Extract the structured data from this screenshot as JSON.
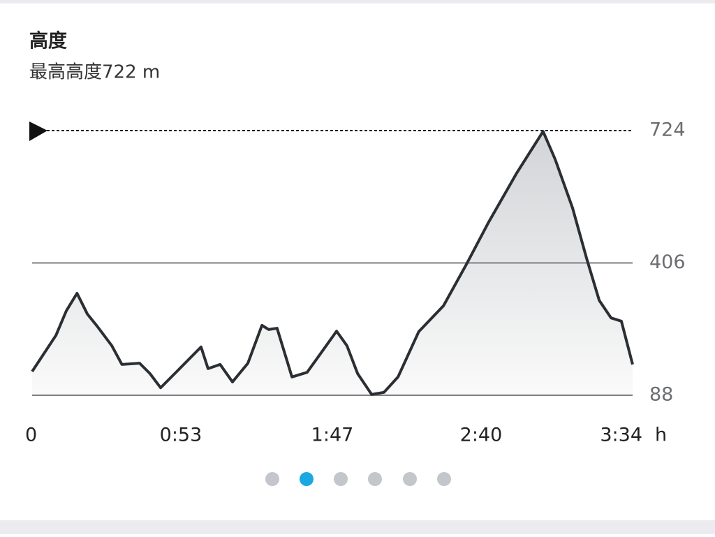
{
  "chart_data": {
    "type": "area",
    "title": "高度",
    "subtitle": "最高高度722 m",
    "x": [
      0,
      8.5,
      12.2,
      16,
      19.7,
      23.4,
      28.4,
      32,
      38.3,
      42,
      45.8,
      52,
      60.2,
      62.7,
      67,
      71.4,
      76.9,
      81.9,
      84.3,
      87.3,
      92.6,
      98,
      103,
      108.5,
      112.2,
      116,
      121,
      125.4,
      130.4,
      137.8,
      146.6,
      154.8,
      162.7,
      172.7,
      182.1,
      186.4,
      192.6,
      197.6,
      202.1,
      206.3,
      210,
      214
    ],
    "values": [
      145,
      232,
      291,
      333,
      283,
      252,
      207,
      162,
      165,
      140,
      106,
      148,
      204,
      152,
      162,
      120,
      165,
      256,
      246,
      249,
      132,
      143,
      190,
      242,
      207,
      140,
      90,
      95,
      132,
      241,
      303,
      403,
      504,
      622,
      722,
      655,
      538,
      417,
      316,
      274,
      266,
      162
    ],
    "color": "#2b2f33",
    "xlim": [
      0,
      214
    ],
    "xticks": [
      0,
      {
        "value": 53,
        "label": "0:53"
      },
      {
        "value": 107,
        "label": "1:47"
      },
      {
        "value": 160,
        "label": "2:40"
      },
      {
        "value": 214,
        "label": "3:34"
      }
    ],
    "xlabel": "h",
    "ylim": [
      88,
      724
    ],
    "yticks": [
      88,
      406,
      724
    ],
    "grid": true
  }
}
